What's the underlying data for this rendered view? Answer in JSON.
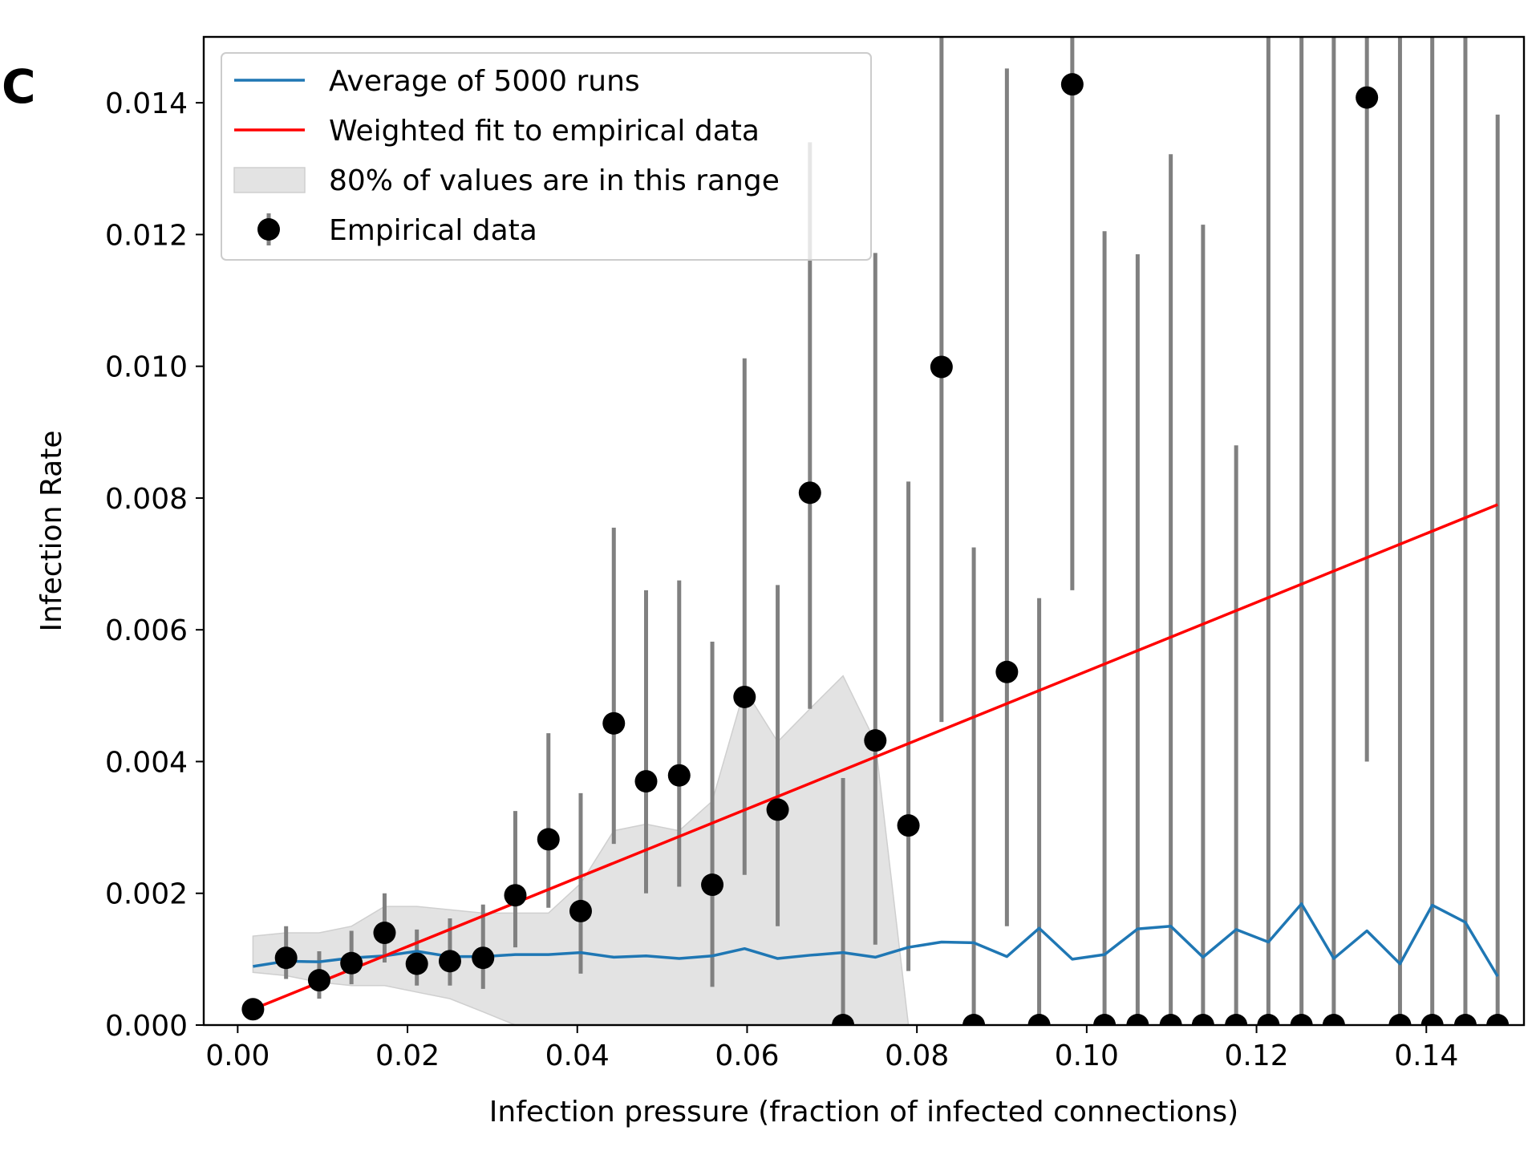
{
  "panel_label": "C",
  "chart_data": {
    "type": "line",
    "title": "",
    "xlabel": "Infection pressure (fraction of infected connections)",
    "ylabel": "Infection Rate",
    "xlim": [
      -0.004,
      0.1515
    ],
    "ylim": [
      0,
      0.015
    ],
    "xticks": [
      0.0,
      0.02,
      0.04,
      0.06,
      0.08,
      0.1,
      0.12,
      0.14
    ],
    "xtick_labels": [
      "0.00",
      "0.02",
      "0.04",
      "0.06",
      "0.08",
      "0.10",
      "0.12",
      "0.14"
    ],
    "yticks": [
      0.0,
      0.002,
      0.004,
      0.006,
      0.008,
      0.01,
      0.012,
      0.014
    ],
    "ytick_labels": [
      "0.000",
      "0.002",
      "0.004",
      "0.006",
      "0.008",
      "0.010",
      "0.012",
      "0.014"
    ],
    "grid": false,
    "legend": {
      "position": "top-left",
      "entries": [
        {
          "label": "Average of 5000 runs",
          "kind": "line",
          "color": "#1f77b4"
        },
        {
          "label": "Weighted fit to empirical data",
          "kind": "line",
          "color": "#ff0000"
        },
        {
          "label": "80% of values are in this range",
          "kind": "band",
          "color": "#e3e3e3"
        },
        {
          "label": "Empirical data",
          "kind": "errorbar-point",
          "color": "#000000"
        }
      ]
    },
    "average": {
      "name": "Average of 5000 runs",
      "color": "#1f77b4",
      "x": [
        0.0018,
        0.0057,
        0.0096,
        0.0134,
        0.0173,
        0.0211,
        0.025,
        0.0289,
        0.0327,
        0.0366,
        0.0404,
        0.0443,
        0.0481,
        0.052,
        0.0559,
        0.0597,
        0.0636,
        0.0674,
        0.0713,
        0.0751,
        0.079,
        0.0829,
        0.0867,
        0.0906,
        0.0944,
        0.0983,
        0.1021,
        0.106,
        0.1099,
        0.1137,
        0.1176,
        0.1214,
        0.1253,
        0.1291,
        0.133,
        0.1369,
        0.1407,
        0.1446,
        0.1484
      ],
      "y": [
        0.00089,
        0.00097,
        0.00096,
        0.00102,
        0.00105,
        0.00112,
        0.00104,
        0.00104,
        0.00107,
        0.00107,
        0.0011,
        0.00103,
        0.00105,
        0.00101,
        0.00105,
        0.00116,
        0.00101,
        0.00106,
        0.0011,
        0.00103,
        0.00118,
        0.00126,
        0.00125,
        0.00104,
        0.00147,
        0.001,
        0.00107,
        0.00146,
        0.0015,
        0.00103,
        0.00145,
        0.00126,
        0.00184,
        0.00101,
        0.00143,
        0.00093,
        0.00182,
        0.00156,
        0.00074
      ]
    },
    "fit": {
      "name": "Weighted fit to empirical data",
      "color": "#ff0000",
      "x": [
        0.0018,
        0.1484
      ],
      "y": [
        0.00024,
        0.0079
      ]
    },
    "band": {
      "name": "80% of values are in this range",
      "color": "#e3e3e3",
      "x": [
        0.0018,
        0.0057,
        0.0096,
        0.0134,
        0.0173,
        0.0211,
        0.025,
        0.0289,
        0.0327,
        0.0366,
        0.0404,
        0.0443,
        0.0481,
        0.052,
        0.0559,
        0.0597,
        0.0636,
        0.0674,
        0.0713,
        0.0751,
        0.079
      ],
      "lower": [
        0.0008,
        0.00075,
        0.00065,
        0.0006,
        0.0006,
        0.0005,
        0.0004,
        0.0002,
        0,
        0,
        0,
        0,
        0,
        0,
        0,
        0,
        0,
        0,
        0,
        0,
        0
      ],
      "upper": [
        0.00135,
        0.0014,
        0.0014,
        0.0015,
        0.0018,
        0.0018,
        0.00175,
        0.0017,
        0.0017,
        0.0017,
        0.00215,
        0.00295,
        0.00305,
        0.00295,
        0.0034,
        0.0051,
        0.0043,
        0.0048,
        0.0053,
        0.0043,
        0
      ]
    },
    "empirical": {
      "name": "Empirical data",
      "color": "#000000",
      "errorbar_color": "#808080",
      "points": [
        {
          "x": 0.0018,
          "y": 0.00024,
          "lo": 0.00024,
          "hi": 0.00024
        },
        {
          "x": 0.0057,
          "y": 0.00102,
          "lo": 0.0007,
          "hi": 0.0015
        },
        {
          "x": 0.0096,
          "y": 0.00068,
          "lo": 0.0004,
          "hi": 0.00112
        },
        {
          "x": 0.0134,
          "y": 0.00094,
          "lo": 0.00062,
          "hi": 0.00143
        },
        {
          "x": 0.0173,
          "y": 0.0014,
          "lo": 0.00095,
          "hi": 0.002
        },
        {
          "x": 0.0211,
          "y": 0.00093,
          "lo": 0.0006,
          "hi": 0.00145
        },
        {
          "x": 0.025,
          "y": 0.00097,
          "lo": 0.0006,
          "hi": 0.00162
        },
        {
          "x": 0.0289,
          "y": 0.00102,
          "lo": 0.00055,
          "hi": 0.00183
        },
        {
          "x": 0.0327,
          "y": 0.00197,
          "lo": 0.00118,
          "hi": 0.00325
        },
        {
          "x": 0.0366,
          "y": 0.00282,
          "lo": 0.00178,
          "hi": 0.00443
        },
        {
          "x": 0.0404,
          "y": 0.00173,
          "lo": 0.00078,
          "hi": 0.00352
        },
        {
          "x": 0.0443,
          "y": 0.00458,
          "lo": 0.00275,
          "hi": 0.00755
        },
        {
          "x": 0.0481,
          "y": 0.0037,
          "lo": 0.002,
          "hi": 0.0066
        },
        {
          "x": 0.052,
          "y": 0.00379,
          "lo": 0.0021,
          "hi": 0.00675
        },
        {
          "x": 0.0559,
          "y": 0.00213,
          "lo": 0.00058,
          "hi": 0.00582
        },
        {
          "x": 0.0597,
          "y": 0.00498,
          "lo": 0.00228,
          "hi": 0.01012
        },
        {
          "x": 0.0636,
          "y": 0.00327,
          "lo": 0.0015,
          "hi": 0.00668
        },
        {
          "x": 0.0674,
          "y": 0.00808,
          "lo": 0.0048,
          "hi": 0.0134
        },
        {
          "x": 0.0713,
          "y": 0.0,
          "lo": 0.0,
          "hi": 0.00375
        },
        {
          "x": 0.0751,
          "y": 0.00432,
          "lo": 0.00122,
          "hi": 0.01172
        },
        {
          "x": 0.079,
          "y": 0.00303,
          "lo": 0.00082,
          "hi": 0.00825
        },
        {
          "x": 0.0829,
          "y": 0.00999,
          "lo": 0.0046,
          "hi": 0.0152
        },
        {
          "x": 0.0867,
          "y": 0.0,
          "lo": 0.0,
          "hi": 0.00725
        },
        {
          "x": 0.0906,
          "y": 0.00536,
          "lo": 0.0015,
          "hi": 0.01452
        },
        {
          "x": 0.0944,
          "y": 0.0,
          "lo": 0.0,
          "hi": 0.00648
        },
        {
          "x": 0.0983,
          "y": 0.01428,
          "lo": 0.0066,
          "hi": 0.0152
        },
        {
          "x": 0.1021,
          "y": 0.0,
          "lo": 0.0,
          "hi": 0.01205
        },
        {
          "x": 0.106,
          "y": 0.0,
          "lo": 0.0,
          "hi": 0.0117
        },
        {
          "x": 0.1099,
          "y": 0.0,
          "lo": 0.0,
          "hi": 0.01322
        },
        {
          "x": 0.1137,
          "y": 0.0,
          "lo": 0.0,
          "hi": 0.01215
        },
        {
          "x": 0.1176,
          "y": 0.0,
          "lo": 0.0,
          "hi": 0.0088
        },
        {
          "x": 0.1214,
          "y": 0.0,
          "lo": 0.0,
          "hi": 0.0152
        },
        {
          "x": 0.1253,
          "y": 0.0,
          "lo": 0.0,
          "hi": 0.0152
        },
        {
          "x": 0.1291,
          "y": 0.0,
          "lo": 0.0,
          "hi": 0.0152
        },
        {
          "x": 0.133,
          "y": 0.01408,
          "lo": 0.004,
          "hi": 0.0152
        },
        {
          "x": 0.1369,
          "y": 0.0,
          "lo": 0.0,
          "hi": 0.0152
        },
        {
          "x": 0.1407,
          "y": 0.0,
          "lo": 0.0,
          "hi": 0.0152
        },
        {
          "x": 0.1446,
          "y": 0.0,
          "lo": 0.0,
          "hi": 0.0152
        },
        {
          "x": 0.1484,
          "y": 0.0,
          "lo": 0.0,
          "hi": 0.01382
        }
      ]
    }
  }
}
